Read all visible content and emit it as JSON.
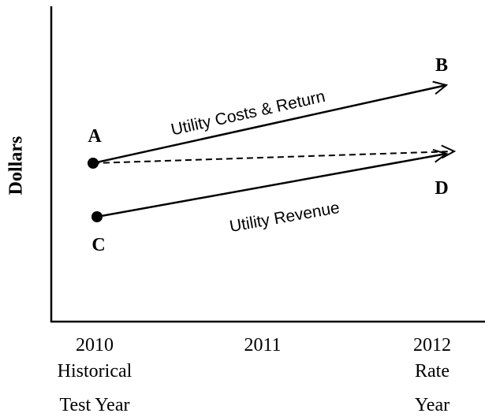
{
  "axes": {
    "y_label": "Dollars",
    "x_ticks": [
      {
        "year": "2010",
        "caption": [
          "Historical",
          "Test Year"
        ]
      },
      {
        "year": "2011",
        "caption": []
      },
      {
        "year": "2012",
        "caption": [
          "Rate",
          "Year"
        ]
      }
    ]
  },
  "points": [
    "A",
    "B",
    "C",
    "D"
  ],
  "lines": [
    "Utility Costs & Return",
    "Utility Revenue"
  ]
}
